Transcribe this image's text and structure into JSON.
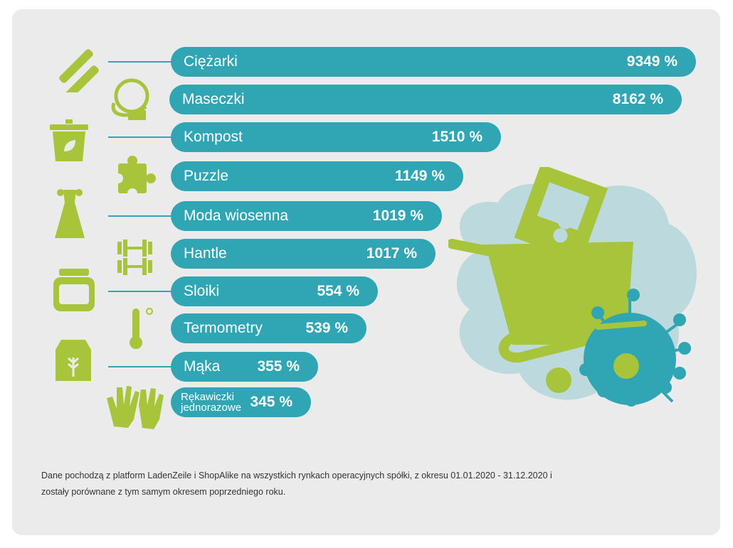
{
  "chart_data": {
    "type": "bar",
    "title": "",
    "categories": [
      "Ciężarki",
      "Maseczki",
      "Kompost",
      "Puzzle",
      "Moda wiosenna",
      "Hantle",
      "Sloiki",
      "Termometry",
      "Mąka",
      "Rękawiczki jednorazowe"
    ],
    "values": [
      9349,
      8162,
      1510,
      1149,
      1019,
      1017,
      554,
      539,
      355,
      345
    ],
    "value_labels": [
      "9349 %",
      "8162 %",
      "1510 %",
      "1149 %",
      "1019 %",
      "1017 %",
      "554 %",
      "539 %",
      "355 %",
      "345 %"
    ],
    "icons": [
      "dumbbells-icon",
      "face-mask-icon",
      "compost-bin-icon",
      "puzzle-icon",
      "dress-icon",
      "barbell-icon",
      "jar-icon",
      "thermometer-icon",
      "flour-bag-icon",
      "gloves-icon"
    ],
    "xlabel": "",
    "ylabel": "",
    "unit": "%"
  },
  "footnote": "Dane pochodzą z platform LadenZeile i ShopAlike na wszystkich rynkach operacyjnych spółki, z okresu 01.01.2020 - 31.12.2020 i zostały porównane z tym samym okresem poprzedniego roku.",
  "colors": {
    "bar": "#30a5b4",
    "icon": "#a8c43a",
    "background": "#ebebeb",
    "cloud": "#bcd9dd"
  }
}
